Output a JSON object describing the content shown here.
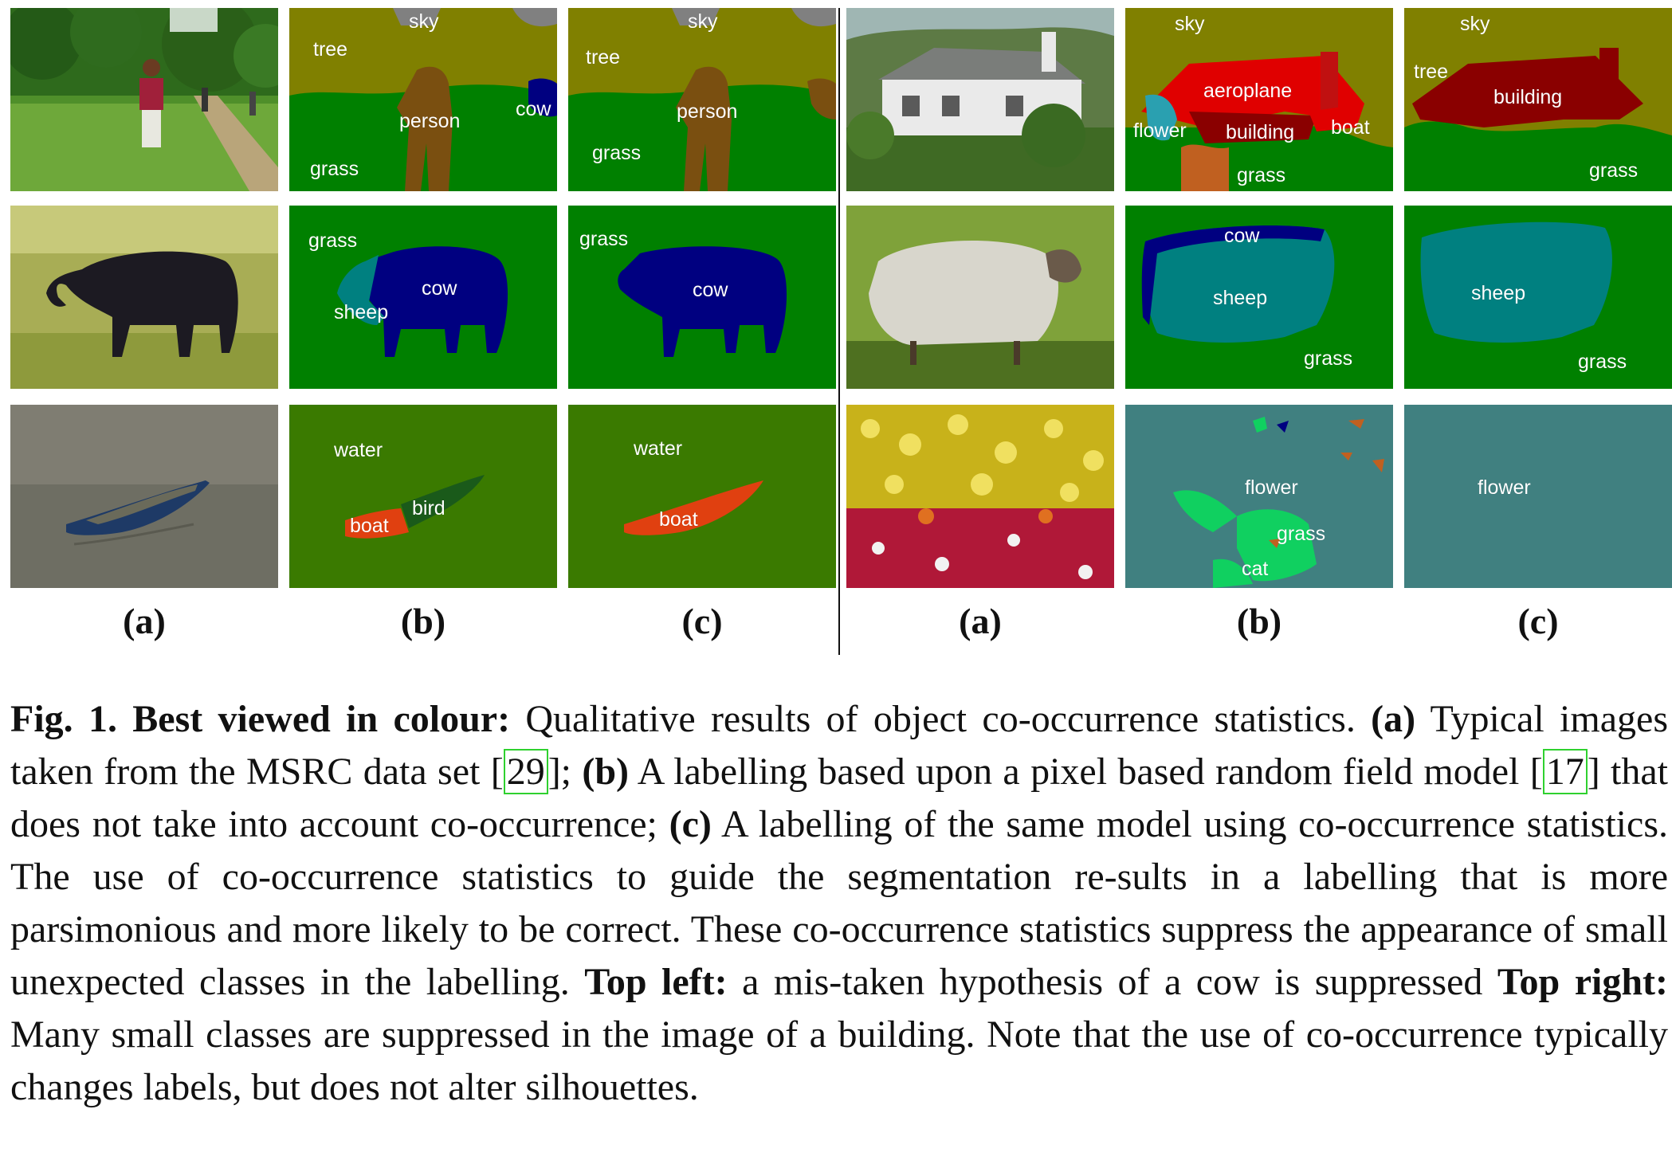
{
  "figure": {
    "left_group": {
      "row1": {
        "b_labels": [
          "sky",
          "tree",
          "person",
          "cow",
          "grass"
        ],
        "c_labels": [
          "sky",
          "tree",
          "person",
          "grass"
        ]
      },
      "row2": {
        "b_labels": [
          "grass",
          "cow",
          "sheep"
        ],
        "c_labels": [
          "grass",
          "cow"
        ]
      },
      "row3": {
        "b_labels": [
          "water",
          "bird",
          "boat"
        ],
        "c_labels": [
          "water",
          "boat"
        ]
      }
    },
    "right_group": {
      "row1": {
        "b_labels": [
          "sky",
          "aeroplane",
          "flower",
          "building",
          "boat",
          "grass"
        ],
        "c_labels": [
          "sky",
          "tree",
          "building",
          "grass"
        ]
      },
      "row2": {
        "b_labels": [
          "cow",
          "sheep",
          "grass"
        ],
        "c_labels": [
          "sheep",
          "grass"
        ]
      },
      "row3": {
        "b_labels": [
          "flower",
          "grass",
          "cat"
        ],
        "c_labels": [
          "flower"
        ]
      }
    },
    "column_labels": [
      "(a)",
      "(b)",
      "(c)",
      "(a)",
      "(b)",
      "(c)"
    ],
    "colors": {
      "sky": "#808080",
      "tree": "#808000",
      "grass": "#008000",
      "person": "#7a4f10",
      "cow": "#000080",
      "sheep": "#008080",
      "water": "#3a7a00",
      "boat": "#e04010",
      "bird": "#1a5a1a",
      "building": "#8a0000",
      "aeroplane": "#e00000",
      "flower": "#408080",
      "cat": "#10d060"
    }
  },
  "caption": {
    "fig_label": "Fig. 1.",
    "lead_bold": "Best viewed in colour:",
    "text_1": " Qualitative results of object co-occurrence statistics. ",
    "a_bold": "(a)",
    "text_2": " Typical images taken from the MSRC data set [",
    "cite_1": "29",
    "text_3": "]; ",
    "b_bold": "(b)",
    "text_4": " A labelling based upon a pixel based random field model [",
    "cite_2": "17",
    "text_5": "] that does not take into account co-occurrence; ",
    "c_bold": "(c)",
    "text_6": " A labelling of the same model using co-occurrence statistics. The use of co-occurrence statistics to guide the segmentation re-sults in a labelling that is more parsimonious and more likely to be correct. These co-occurrence statistics suppress the appearance of small unexpected classes in the labelling. ",
    "top_left_bold": "Top left:",
    "text_7": " a mis-taken hypothesis of a cow is suppressed ",
    "top_right_bold": "Top right:",
    "text_8": " Many small classes are suppressed in the image of a building. Note that the use of co-occurrence typically changes labels, but does not alter silhouettes."
  }
}
